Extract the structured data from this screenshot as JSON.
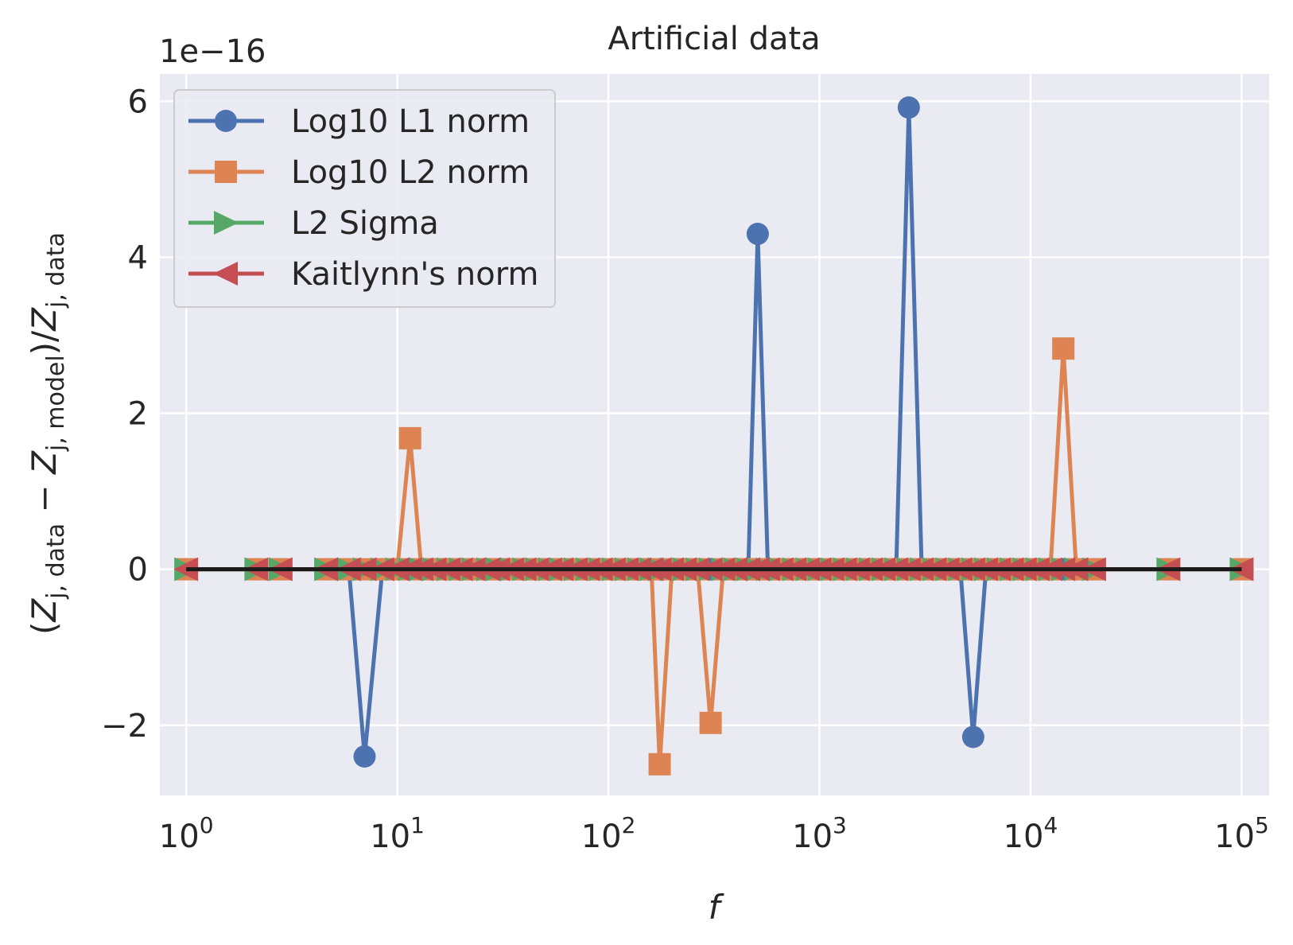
{
  "chart_data": {
    "type": "line",
    "title": "Artificial data",
    "xlabel": "f",
    "ylabel": {
      "open": "(",
      "z1": "Z",
      "sub1": "j, data",
      "minus": " − ",
      "z2": "Z",
      "sub2": "j, model",
      "mid": ")/",
      "z3": "Z",
      "sub3": "j, data"
    },
    "offset_text": "1e−16",
    "xscale": "log",
    "xlim": [
      0.75,
      135000
    ],
    "ylim": [
      -2.9,
      6.35
    ],
    "x_ticks": [
      {
        "value": 1,
        "base": "10",
        "exp": "0"
      },
      {
        "value": 10,
        "base": "10",
        "exp": "1"
      },
      {
        "value": 100,
        "base": "10",
        "exp": "2"
      },
      {
        "value": 1000,
        "base": "10",
        "exp": "3"
      },
      {
        "value": 10000,
        "base": "10",
        "exp": "4"
      },
      {
        "value": 100000,
        "base": "10",
        "exp": "5"
      }
    ],
    "y_ticks": [
      {
        "value": -2,
        "label": "−2"
      },
      {
        "value": 0,
        "label": "0"
      },
      {
        "value": 2,
        "label": "2"
      },
      {
        "value": 4,
        "label": "4"
      },
      {
        "value": 6,
        "label": "6"
      }
    ],
    "grid": true,
    "legend_position": "top-left",
    "background_color": "#eaeaf2",
    "x": [
      1,
      2.15,
      2.8,
      4.6,
      5.9,
      7.0,
      8.5,
      10.0,
      11.5,
      13.0,
      15.0,
      17.5,
      20.0,
      23.0,
      27.0,
      30.0,
      35.0,
      40.0,
      46.0,
      53.0,
      60.0,
      70.0,
      80.0,
      92.0,
      106.0,
      122.0,
      140.0,
      160.0,
      175.0,
      200.0,
      230.0,
      265.0,
      305.0,
      350.0,
      400.0,
      460.0,
      510.0,
      570.0,
      660.0,
      760.0,
      880.0,
      1000.0,
      1150.0,
      1320.0,
      1520.0,
      1750.0,
      2010.0,
      2310.0,
      2650.0,
      3050.0,
      3510.0,
      4040.0,
      4650.0,
      5350.0,
      6150.0,
      7080.0,
      8150.0,
      9380.0,
      10800.0,
      12430.0,
      14300.0,
      16460.0,
      20000.0,
      45000.0,
      100000.0
    ],
    "series": [
      {
        "name": "Log10 L1 norm",
        "color": "#4c72b0",
        "marker": "circle",
        "values": [
          0,
          0,
          0,
          0,
          0,
          -2.4,
          0,
          0,
          0,
          0,
          0,
          0,
          0,
          0,
          0,
          0,
          0,
          0,
          0,
          0,
          0,
          0,
          0,
          0,
          0,
          0,
          0,
          0,
          0,
          0,
          0,
          0,
          0,
          0,
          0,
          0,
          4.3,
          0,
          0,
          0,
          0,
          0,
          0,
          0,
          0,
          0,
          0,
          0,
          5.92,
          0,
          0,
          0,
          0,
          -2.15,
          0,
          0,
          0,
          0,
          0,
          0,
          0,
          0,
          0,
          0,
          0
        ]
      },
      {
        "name": "Log10 L2 norm",
        "color": "#dd8452",
        "marker": "square",
        "values": [
          0,
          0,
          0,
          0,
          0,
          0,
          0,
          0,
          1.68,
          0,
          0,
          0,
          0,
          0,
          0,
          0,
          0,
          0,
          0,
          0,
          0,
          0,
          0,
          0,
          0,
          0,
          0,
          0,
          -2.5,
          0,
          0,
          0,
          -1.97,
          0,
          0,
          0,
          0,
          0,
          0,
          0,
          0,
          0,
          0,
          0,
          0,
          0,
          0,
          0,
          0,
          0,
          0,
          0,
          0,
          0,
          0,
          0,
          0,
          0,
          0,
          0,
          2.83,
          0,
          0,
          0,
          0
        ]
      },
      {
        "name": "L2 Sigma",
        "color": "#55a868",
        "marker": "triangle-right",
        "values": [
          0,
          0,
          0,
          0,
          0,
          0,
          0,
          0,
          0,
          0,
          0,
          0,
          0,
          0,
          0,
          0,
          0,
          0,
          0,
          0,
          0,
          0,
          0,
          0,
          0,
          0,
          0,
          0,
          0,
          0,
          0,
          0,
          0,
          0,
          0,
          0,
          0,
          0,
          0,
          0,
          0,
          0,
          0,
          0,
          0,
          0,
          0,
          0,
          0,
          0,
          0,
          0,
          0,
          0,
          0,
          0,
          0,
          0,
          0,
          0,
          0,
          0,
          0,
          0,
          0
        ]
      },
      {
        "name": "Kaitlynn's norm",
        "color": "#c44e52",
        "marker": "triangle-left",
        "values": [
          0,
          0,
          0,
          0,
          0,
          0,
          0,
          0,
          0,
          0,
          0,
          0,
          0,
          0,
          0,
          0,
          0,
          0,
          0,
          0,
          0,
          0,
          0,
          0,
          0,
          0,
          0,
          0,
          0,
          0,
          0,
          0,
          0,
          0,
          0,
          0,
          0,
          0,
          0,
          0,
          0,
          0,
          0,
          0,
          0,
          0,
          0,
          0,
          0,
          0,
          0,
          0,
          0,
          0,
          0,
          0,
          0,
          0,
          0,
          0,
          0,
          0,
          0,
          0,
          0
        ]
      }
    ],
    "reference_line": {
      "color": "#1a1a1a",
      "x_range": [
        1,
        100000
      ],
      "y": 0
    }
  }
}
